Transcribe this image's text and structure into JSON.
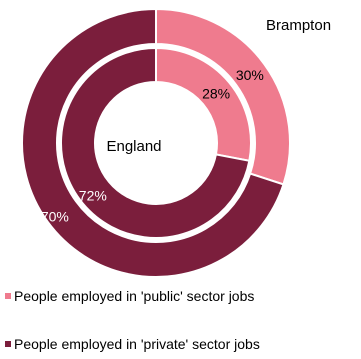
{
  "chart_data": {
    "type": "pie",
    "series": [
      {
        "name": "Brampton",
        "values": [
          30,
          70
        ],
        "labels": [
          "30%",
          "70%"
        ]
      },
      {
        "name": "England",
        "values": [
          28,
          72
        ],
        "labels": [
          "28%",
          "72%"
        ]
      }
    ],
    "categories": [
      "People employed in 'public' sector jobs",
      "People employed in 'private' sector jobs"
    ],
    "colors": [
      "#ef7b8e",
      "#7b1e3c"
    ],
    "legend_position": "bottom-left"
  }
}
